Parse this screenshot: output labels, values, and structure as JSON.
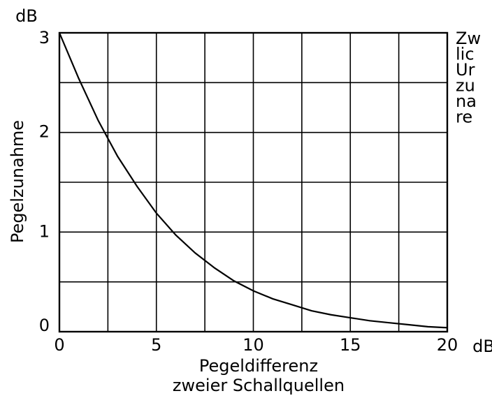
{
  "chart_data": {
    "type": "line",
    "ylabel": "Pegelzunahme",
    "y_unit": "dB",
    "x_unit": "dB",
    "xlabel": [
      "Pegeldifferenz",
      "zweier Schallquellen"
    ],
    "annotations": [
      "Zw",
      "lic",
      "Ur",
      "zu",
      "na",
      "re"
    ],
    "x": [
      0,
      1,
      2,
      2.5,
      3,
      4,
      5,
      6,
      7,
      8,
      9,
      10,
      11,
      12,
      13,
      14,
      15,
      16,
      17,
      18,
      19,
      20
    ],
    "series": [
      {
        "color": "#000000",
        "values": [
          3.0,
          2.54,
          2.12,
          1.94,
          1.76,
          1.46,
          1.19,
          0.97,
          0.79,
          0.64,
          0.51,
          0.41,
          0.33,
          0.27,
          0.21,
          0.17,
          0.14,
          0.11,
          0.09,
          0.07,
          0.05,
          0.04
        ]
      }
    ],
    "xlim": [
      0,
      20
    ],
    "xticks": [
      0,
      5,
      10,
      15,
      20
    ],
    "ylim": [
      0,
      3
    ],
    "yticks": [
      0,
      1,
      2,
      3
    ],
    "xgrid": [
      2.5,
      5,
      7.5,
      10,
      12.5,
      15,
      17.5
    ],
    "ygrid": [
      0.5,
      1,
      1.5,
      2,
      2.5
    ],
    "grid": true
  }
}
